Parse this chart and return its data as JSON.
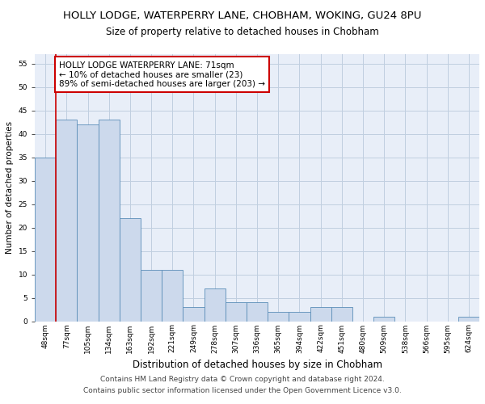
{
  "title": "HOLLY LODGE, WATERPERRY LANE, CHOBHAM, WOKING, GU24 8PU",
  "subtitle": "Size of property relative to detached houses in Chobham",
  "xlabel": "Distribution of detached houses by size in Chobham",
  "ylabel": "Number of detached properties",
  "categories": [
    "48sqm",
    "77sqm",
    "105sqm",
    "134sqm",
    "163sqm",
    "192sqm",
    "221sqm",
    "249sqm",
    "278sqm",
    "307sqm",
    "336sqm",
    "365sqm",
    "394sqm",
    "422sqm",
    "451sqm",
    "480sqm",
    "509sqm",
    "538sqm",
    "566sqm",
    "595sqm",
    "624sqm"
  ],
  "values": [
    35,
    43,
    42,
    43,
    22,
    11,
    11,
    3,
    7,
    4,
    4,
    2,
    2,
    3,
    3,
    0,
    1,
    0,
    0,
    0,
    1
  ],
  "bar_color": "#ccd9ec",
  "bar_edge_color": "#5b8db8",
  "annotation_text": "HOLLY LODGE WATERPERRY LANE: 71sqm\n← 10% of detached houses are smaller (23)\n89% of semi-detached houses are larger (203) →",
  "annotation_box_color": "white",
  "annotation_box_edge": "#cc0000",
  "vline_x": 0.5,
  "vline_color": "#cc0000",
  "ylim": [
    0,
    57
  ],
  "yticks": [
    0,
    5,
    10,
    15,
    20,
    25,
    30,
    35,
    40,
    45,
    50,
    55
  ],
  "grid_color": "#c0cfe0",
  "background_color": "#e8eef8",
  "footer_text": "Contains HM Land Registry data © Crown copyright and database right 2024.\nContains public sector information licensed under the Open Government Licence v3.0.",
  "title_fontsize": 9.5,
  "subtitle_fontsize": 8.5,
  "xlabel_fontsize": 8.5,
  "ylabel_fontsize": 7.5,
  "tick_fontsize": 6.5,
  "annotation_fontsize": 7.5,
  "footer_fontsize": 6.5
}
